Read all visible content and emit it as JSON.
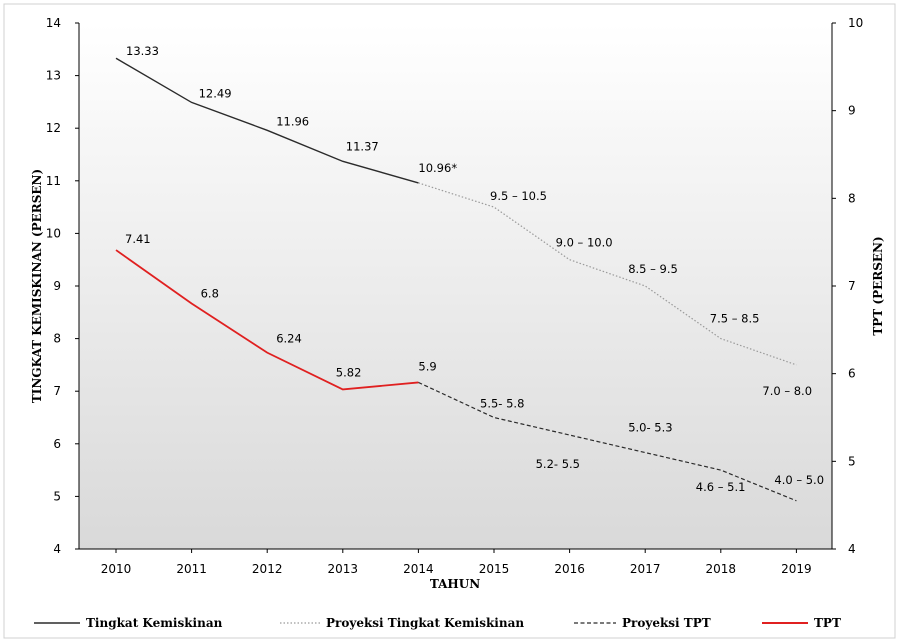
{
  "chart_data": {
    "type": "line",
    "xlabel": "TAHUN",
    "ylabel_left": "TINGKAT KEMISKINAN (PERSEN)",
    "ylabel_right": "TPT (PERSEN)",
    "x": [
      "2010",
      "2011",
      "2012",
      "2013",
      "2014",
      "2015",
      "2016",
      "2017",
      "2018",
      "2019"
    ],
    "ylim_left": [
      4,
      14
    ],
    "yticks_left": [
      "4",
      "5",
      "6",
      "7",
      "8",
      "9",
      "10",
      "11",
      "12",
      "13",
      "14"
    ],
    "ylim_right": [
      4,
      10
    ],
    "yticks_right": [
      "4",
      "5",
      "6",
      "7",
      "8",
      "9",
      "10"
    ],
    "series": [
      {
        "name": "Tingkat Kemiskinan",
        "axis": "left",
        "style": "solid",
        "color": "#2b2b2b",
        "x": [
          "2010",
          "2011",
          "2012",
          "2013",
          "2014"
        ],
        "values": [
          13.33,
          12.49,
          11.96,
          11.37,
          10.96
        ],
        "labels": [
          "13.33",
          "12.49",
          "11.96",
          "11.37",
          "10.96*"
        ]
      },
      {
        "name": "Proyeksi Tingkat Kemiskinan",
        "axis": "left",
        "style": "dotted",
        "color": "#9a9a9a",
        "x": [
          "2014",
          "2015",
          "2016",
          "2017",
          "2018",
          "2019"
        ],
        "values": [
          10.96,
          10.5,
          9.5,
          9.0,
          8.0,
          7.5
        ],
        "labels": [
          "",
          "9.5 – 10.5",
          "9.0 – 10.0",
          "8.5 – 9.5",
          "7.5 – 8.5",
          "7.0 – 8.0"
        ]
      },
      {
        "name": "Proyeksi TPT",
        "axis": "right",
        "style": "dashed",
        "color": "#2b2b2b",
        "x": [
          "2014",
          "2015",
          "2016",
          "2017",
          "2018",
          "2019"
        ],
        "values": [
          5.9,
          5.5,
          5.3,
          5.1,
          4.9,
          4.55
        ],
        "labels": [
          "",
          "5.5- 5.8",
          "5.2- 5.5",
          "5.0- 5.3",
          "4.6 – 5.1",
          "4.0 – 5.0"
        ]
      },
      {
        "name": "TPT",
        "axis": "right",
        "style": "solid",
        "color": "#e02020",
        "x": [
          "2010",
          "2011",
          "2012",
          "2013",
          "2014"
        ],
        "values": [
          7.41,
          6.8,
          6.24,
          5.82,
          5.9
        ],
        "labels": [
          "7.41",
          "6.8",
          "6.24",
          "5.82",
          "5.9"
        ]
      }
    ],
    "plot_background": "gradient white to light gray",
    "grid": false,
    "legend_position": "bottom"
  }
}
